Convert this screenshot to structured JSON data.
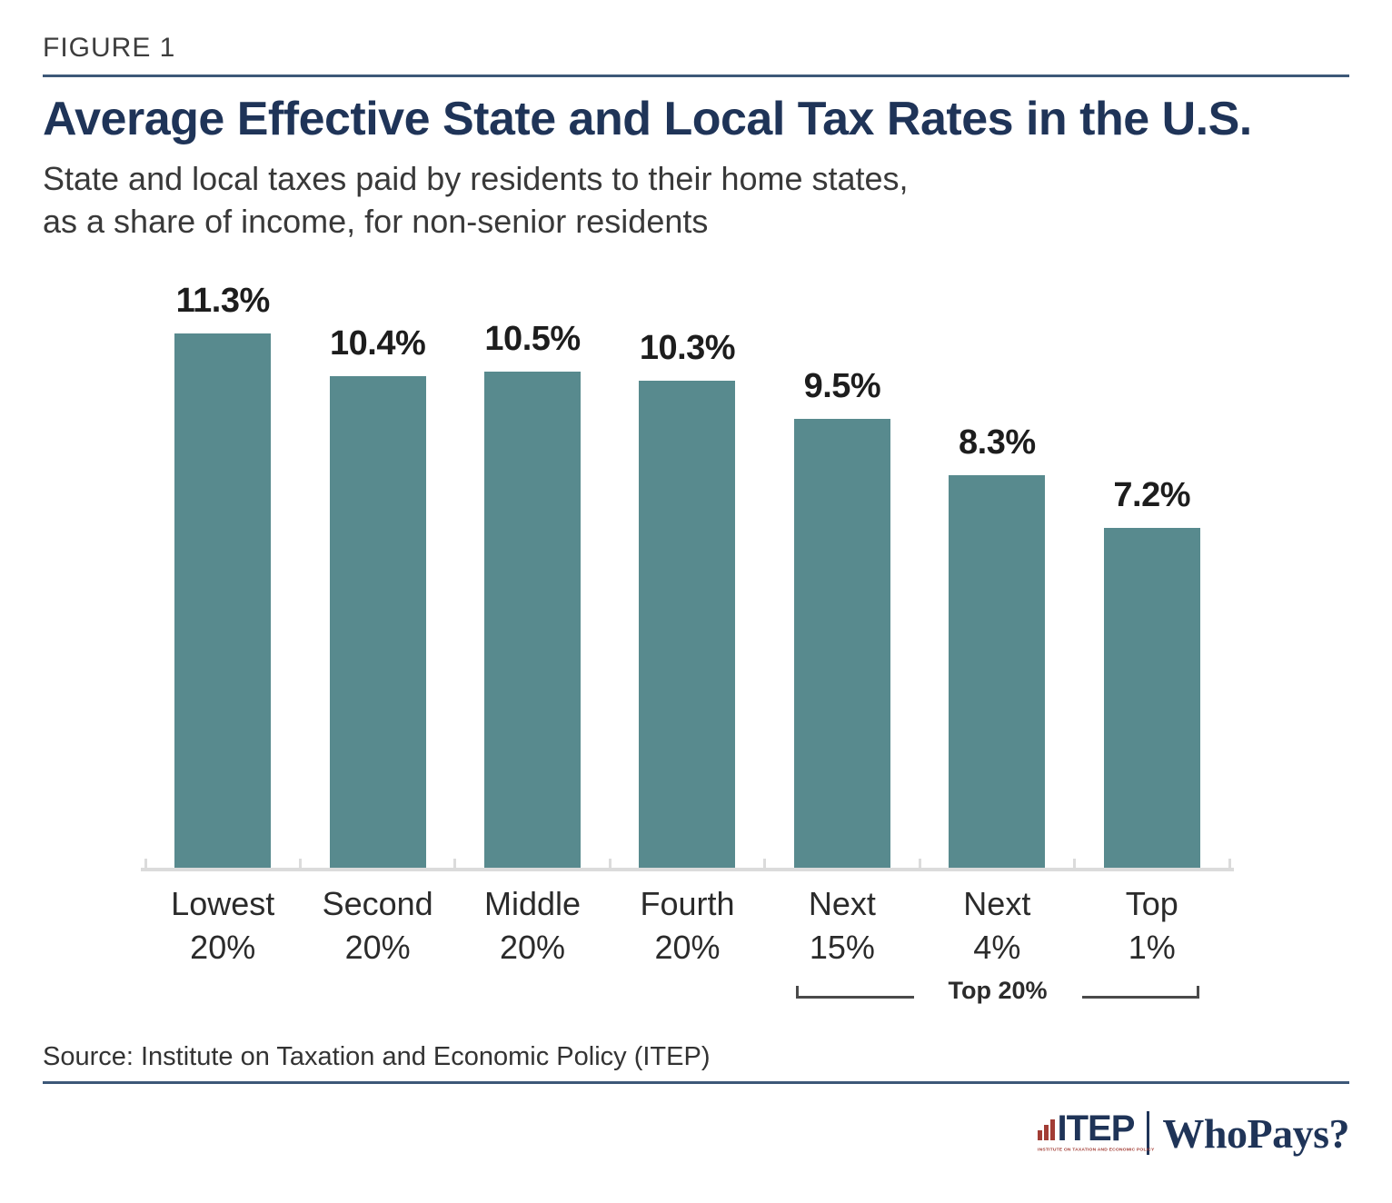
{
  "figure_label": "FIGURE 1",
  "title": "Average Effective State and Local Tax Rates in the U.S.",
  "subtitle_line1": "State and local taxes paid by residents to their home states,",
  "subtitle_line2": "as a share of income, for non-senior residents",
  "source": "Source: Institute on Taxation and Economic Policy (ITEP)",
  "footer": {
    "itep_logo_text": "ITEP",
    "itep_tagline": "INSTITUTE ON TAXATION AND ECONOMIC POLICY",
    "whopays_text": "WhoPays?"
  },
  "colors": {
    "bar_teal": "#588a8e",
    "navy": "#1f3458",
    "rule_navy": "#3d5878",
    "logo_red": "#a23d35",
    "axis_gray": "#dbdbdb",
    "bracket_gray": "#4a4a4a"
  },
  "chart_data": {
    "type": "bar",
    "title": "Average Effective State and Local Tax Rates in the U.S.",
    "subtitle": "State and local taxes paid by residents to their home states, as a share of income, for non-senior residents",
    "categories": [
      "Lowest 20%",
      "Second 20%",
      "Middle 20%",
      "Fourth 20%",
      "Next 15%",
      "Next 4%",
      "Top 1%"
    ],
    "category_lines": [
      [
        "Lowest",
        "20%"
      ],
      [
        "Second",
        "20%"
      ],
      [
        "Middle",
        "20%"
      ],
      [
        "Fourth",
        "20%"
      ],
      [
        "Next",
        "15%"
      ],
      [
        "Next",
        "4%"
      ],
      [
        "Top",
        "1%"
      ]
    ],
    "values": [
      11.3,
      10.4,
      10.5,
      10.3,
      9.5,
      8.3,
      7.2
    ],
    "value_labels": [
      "11.3%",
      "10.4%",
      "10.5%",
      "10.3%",
      "9.5%",
      "8.3%",
      "7.2%"
    ],
    "xlabel": "",
    "ylabel": "",
    "ylim": [
      0,
      11.5
    ],
    "grid": false,
    "legend": false,
    "bar_color": "#588a8e",
    "annotation": {
      "label": "Top 20%",
      "span_categories": [
        "Next 15%",
        "Next 4%",
        "Top 1%"
      ]
    }
  }
}
